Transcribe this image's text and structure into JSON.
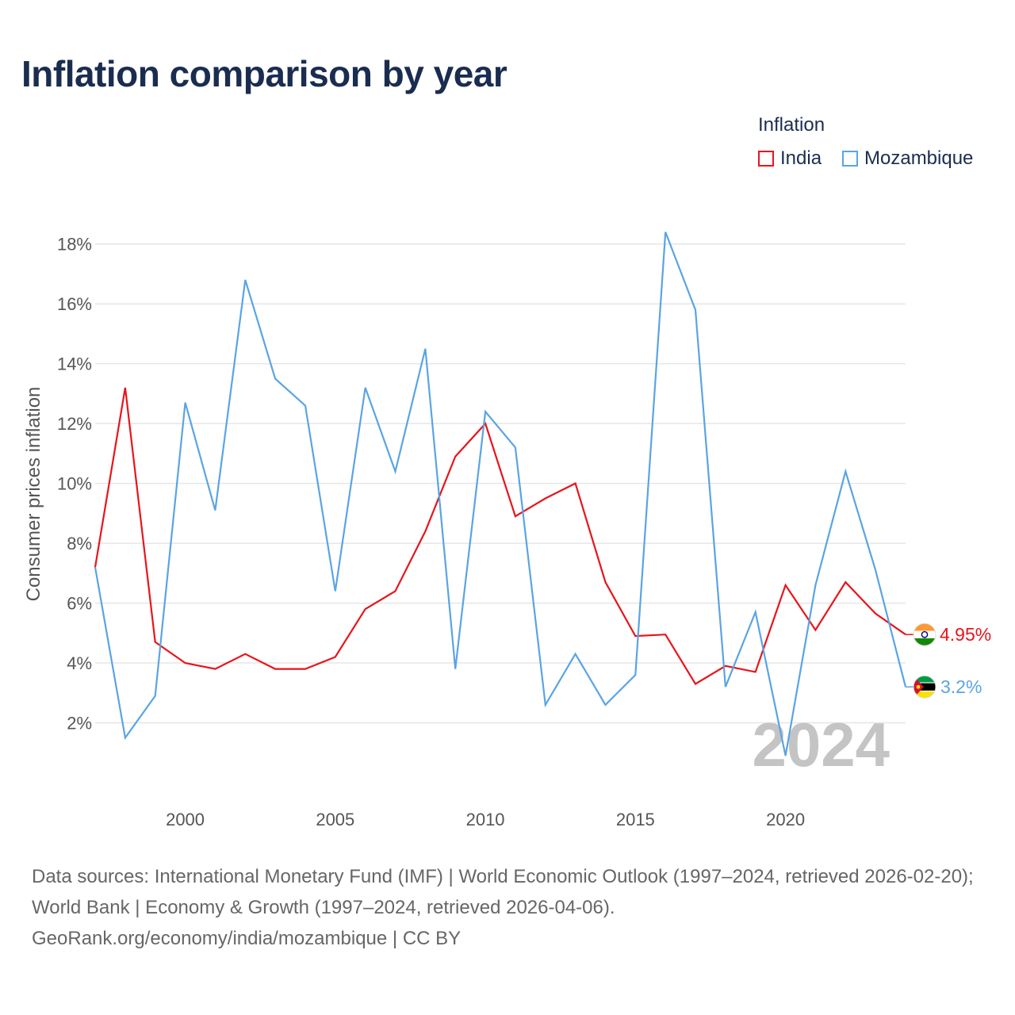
{
  "title": "Inflation comparison by year",
  "legend": {
    "title": "Inflation",
    "items": [
      {
        "label": "India",
        "color": "#e8141b"
      },
      {
        "label": "Mozambique",
        "color": "#5aa4e3"
      }
    ]
  },
  "watermark_year": "2024",
  "end_labels": {
    "india": "4.95%",
    "mozambique": "3.2%"
  },
  "flags": {
    "india": "india-flag-icon",
    "mozambique": "mozambique-flag-icon"
  },
  "footer": {
    "sources": "Data sources: International Monetary Fund (IMF) | World Economic Outlook (1997–2024, retrieved 2026-02-20); World Bank | Economy & Growth (1997–2024, retrieved 2026-04-06).",
    "credit": "GeoRank.org/economy/india/mozambique | CC BY"
  },
  "chart_data": {
    "type": "line",
    "title": "Inflation comparison by year",
    "xlabel": "",
    "ylabel": "Consumer prices inflation",
    "xlim": [
      1997,
      2024
    ],
    "ylim": [
      0,
      19
    ],
    "x_ticks": [
      2000,
      2005,
      2010,
      2015,
      2020
    ],
    "y_ticks": [
      2,
      4,
      6,
      8,
      10,
      12,
      14,
      16,
      18
    ],
    "y_tick_suffix": "%",
    "grid": true,
    "legend_position": "top-right",
    "x": [
      1997,
      1998,
      1999,
      2000,
      2001,
      2002,
      2003,
      2004,
      2005,
      2006,
      2007,
      2008,
      2009,
      2010,
      2011,
      2012,
      2013,
      2014,
      2015,
      2016,
      2017,
      2018,
      2019,
      2020,
      2021,
      2022,
      2023,
      2024
    ],
    "series": [
      {
        "name": "India",
        "color": "#e8141b",
        "values": [
          7.2,
          13.2,
          4.7,
          4.0,
          3.8,
          4.3,
          3.8,
          3.8,
          4.2,
          5.8,
          6.4,
          8.4,
          10.9,
          12.0,
          8.9,
          9.5,
          10.0,
          6.7,
          4.9,
          4.95,
          3.3,
          3.9,
          3.7,
          6.6,
          5.1,
          6.7,
          5.65,
          4.95
        ]
      },
      {
        "name": "Mozambique",
        "color": "#5aa4e3",
        "values": [
          7.2,
          1.5,
          2.9,
          12.7,
          9.1,
          16.8,
          13.5,
          12.6,
          6.4,
          13.2,
          10.4,
          14.5,
          3.8,
          12.4,
          11.2,
          2.6,
          4.3,
          2.6,
          3.6,
          18.4,
          15.8,
          3.2,
          5.7,
          0.9,
          6.6,
          10.4,
          7.1,
          3.2
        ]
      }
    ]
  }
}
